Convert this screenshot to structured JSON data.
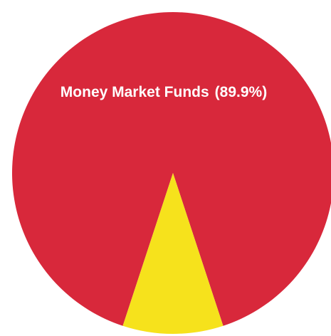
{
  "chart_data": {
    "type": "pie",
    "categories": [
      "Money Market Funds",
      null
    ],
    "values": [
      89.9,
      10.1
    ],
    "value_labels": [
      "(89.9%)",
      null
    ],
    "colors": [
      "#d8283b",
      "#f6e21c"
    ]
  }
}
